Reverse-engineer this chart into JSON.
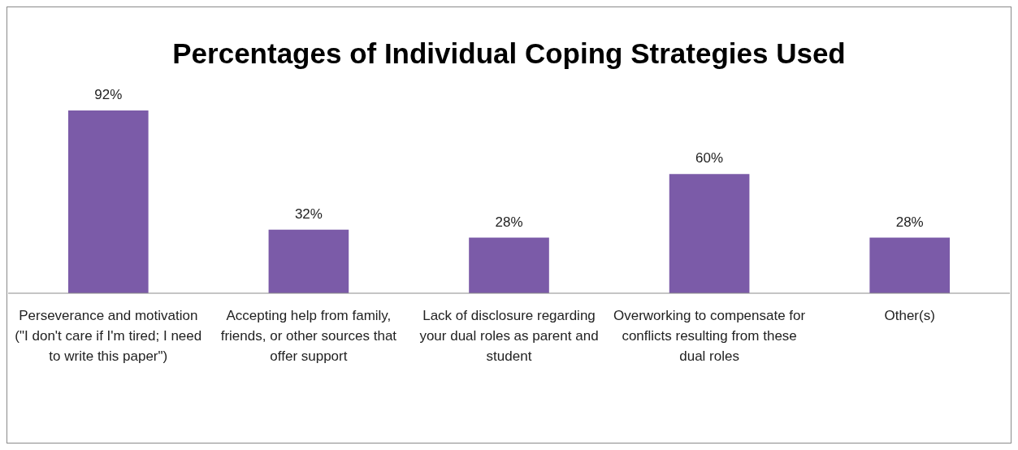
{
  "chart_data": {
    "type": "bar",
    "title": "Percentages of Individual Coping Strategies Used",
    "categories": [
      "Perseverance and motivation (\"I don't care if I'm tired; I need to write this paper\")",
      "Accepting help from family, friends, or other sources that offer support",
      "Lack of disclosure regarding your dual roles as parent and student",
      "Overworking to compensate for conflicts resulting from these dual roles",
      "Other(s)"
    ],
    "values": [
      92,
      32,
      28,
      60,
      28
    ],
    "value_labels": [
      "92%",
      "32%",
      "28%",
      "60%",
      "28%"
    ],
    "color": "#7b5ba8"
  }
}
